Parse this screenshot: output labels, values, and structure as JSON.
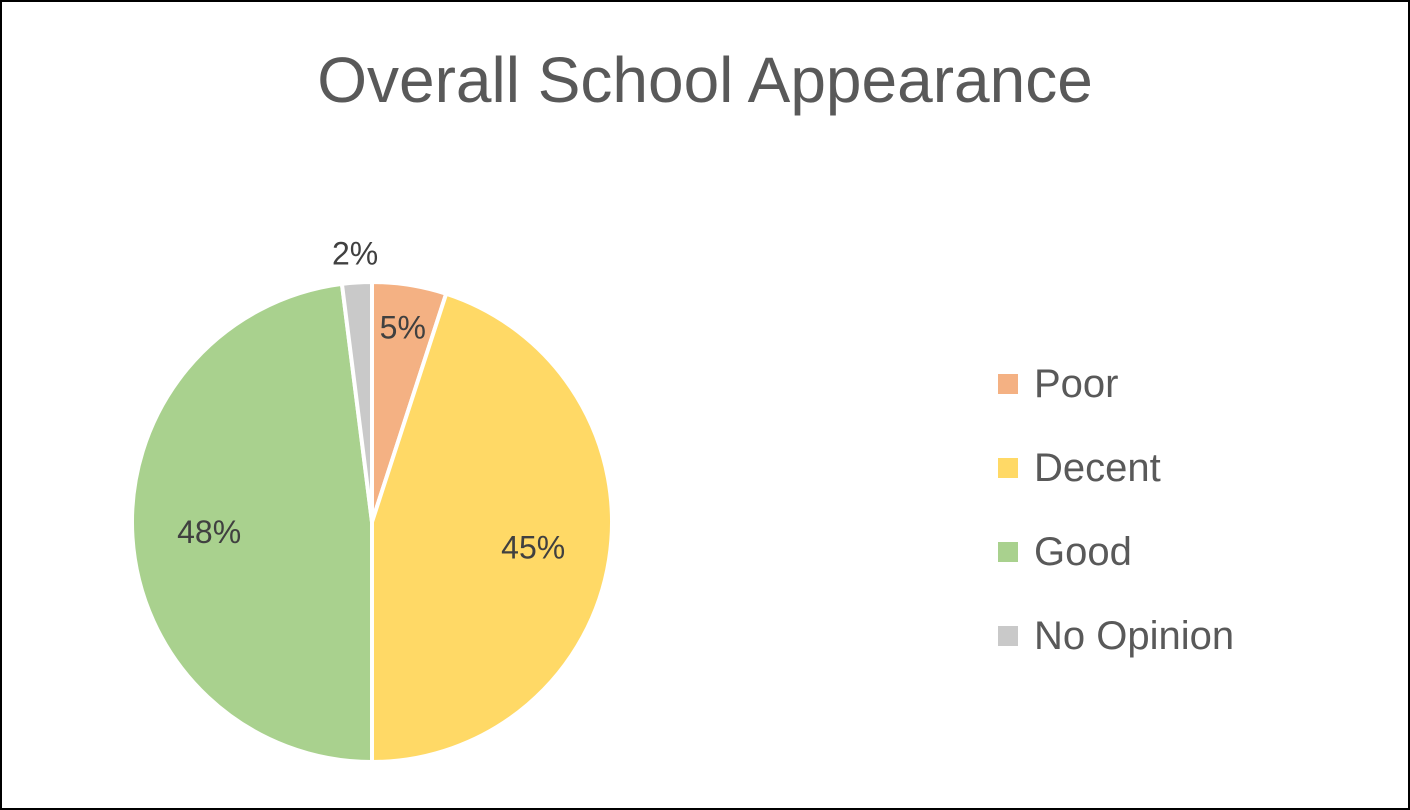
{
  "chart_data": {
    "type": "pie",
    "title": "Overall School Appearance",
    "categories": [
      "Poor",
      "Decent",
      "Good",
      "No Opinion"
    ],
    "values": [
      5,
      45,
      48,
      2
    ],
    "labels": [
      "5%",
      "45%",
      "48%",
      "2%"
    ],
    "colors": [
      "#F4B183",
      "#FFD966",
      "#A9D18E",
      "#C9C9C9"
    ],
    "legend_position": "right"
  }
}
